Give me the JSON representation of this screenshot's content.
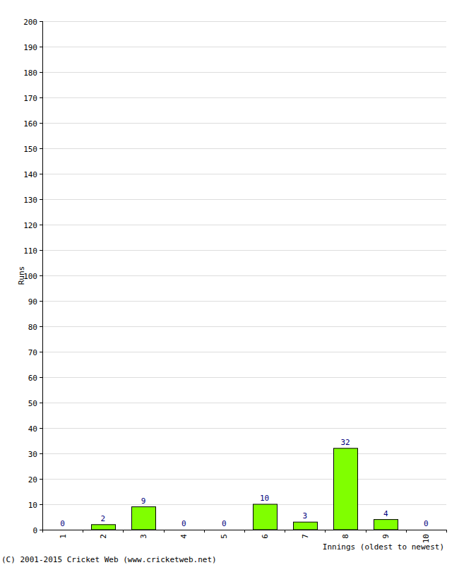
{
  "chart_data": {
    "type": "bar",
    "y_label": "Runs",
    "x_label": "Innings (oldest to newest)",
    "annotations": [
      "(C) 2001-2015 Cricket Web (www.cricketweb.net)"
    ],
    "categories": [
      "1",
      "2",
      "3",
      "4",
      "5",
      "6",
      "7",
      "8",
      "9",
      "10"
    ],
    "values": [
      0,
      2,
      9,
      0,
      0,
      10,
      3,
      32,
      4,
      0
    ],
    "color": "#80ff00",
    "ylim": [
      0,
      200
    ],
    "yticks": [
      0,
      10,
      20,
      30,
      40,
      50,
      60,
      70,
      80,
      90,
      100,
      110,
      120,
      130,
      140,
      150,
      160,
      170,
      180,
      190,
      200
    ],
    "grid": true,
    "data_labels": true
  }
}
